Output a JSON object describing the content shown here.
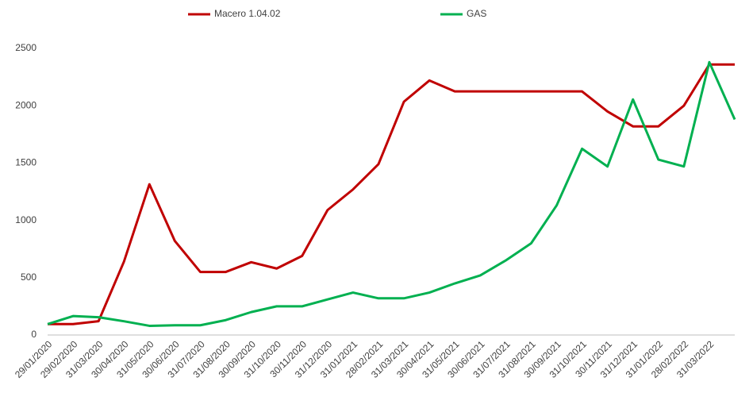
{
  "chart_data": {
    "type": "line",
    "categories": [
      "29/01/2020",
      "29/02/2020",
      "31/03/2020",
      "30/04/2020",
      "31/05/2020",
      "30/06/2020",
      "31/07/2020",
      "31/08/2020",
      "30/09/2020",
      "31/10/2020",
      "30/11/2020",
      "31/12/2020",
      "31/01/2021",
      "28/02/2021",
      "31/03/2021",
      "30/04/2021",
      "31/05/2021",
      "30/06/2021",
      "31/07/2021",
      "31/08/2021",
      "30/09/2021",
      "31/10/2021",
      "30/11/2021",
      "31/12/2021",
      "31/01/2022",
      "28/02/2022",
      "31/03/2022",
      null
    ],
    "series": [
      {
        "name": "Macero 1.04.02",
        "color": "#c00000",
        "values": [
          95,
          95,
          120,
          640,
          1315,
          820,
          550,
          550,
          635,
          580,
          690,
          1090,
          1270,
          1490,
          2035,
          2220,
          2125,
          2125,
          2125,
          2125,
          2125,
          2125,
          1950,
          1820,
          1820,
          2000,
          2360,
          2360
        ]
      },
      {
        "name": "GAS",
        "color": "#00b050",
        "values": [
          95,
          165,
          155,
          120,
          80,
          85,
          85,
          130,
          200,
          250,
          250,
          310,
          370,
          320,
          320,
          370,
          450,
          520,
          650,
          800,
          1130,
          1625,
          1470,
          2055,
          1530,
          1470,
          2380,
          1880
        ]
      }
    ],
    "ylim": [
      0,
      2500
    ],
    "yticks": [
      0,
      500,
      1000,
      1500,
      2000,
      2500
    ],
    "grid": false,
    "legend": "top"
  }
}
